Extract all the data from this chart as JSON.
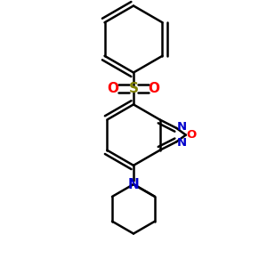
{
  "bg_color": "#ffffff",
  "bond_color": "#000000",
  "N_color": "#0000cc",
  "O_color": "#ff0000",
  "S_color": "#808000",
  "lw": 1.8,
  "figsize": [
    3.0,
    3.0
  ],
  "dpi": 100,
  "xlim": [
    0.15,
    0.85
  ],
  "ylim": [
    0.05,
    0.97
  ]
}
